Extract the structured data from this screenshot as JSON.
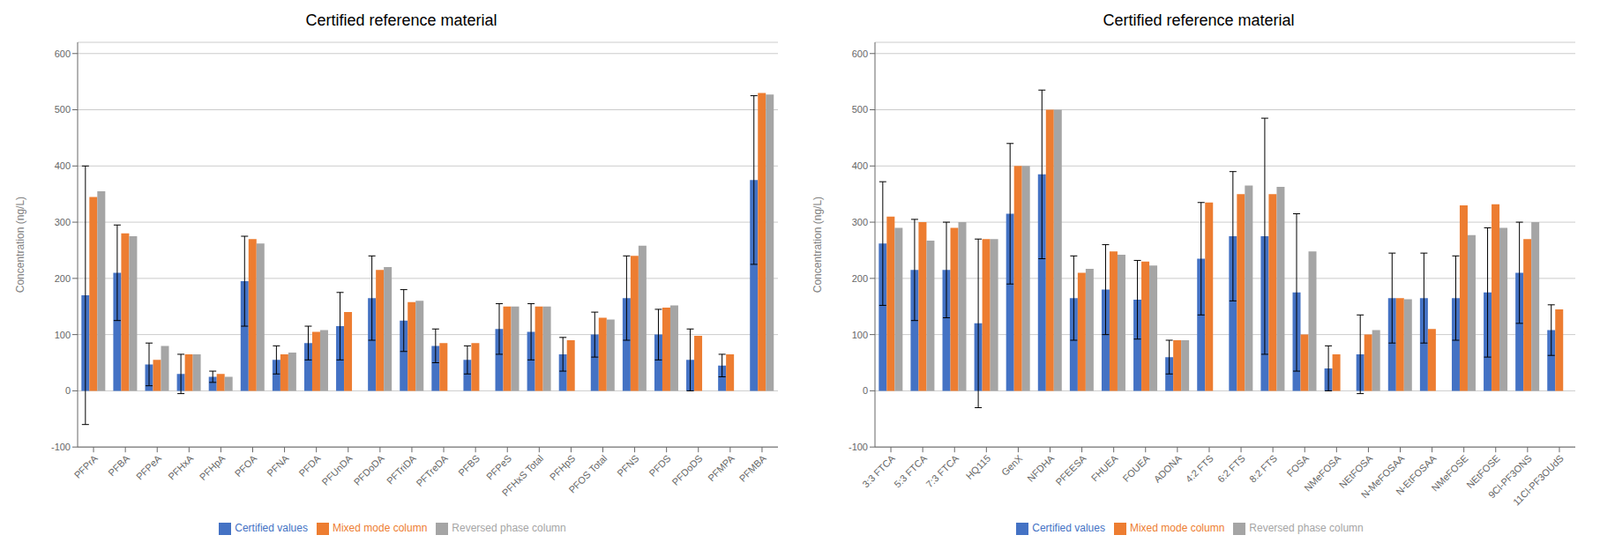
{
  "chart_data": [
    {
      "type": "bar",
      "title": "Certified reference material",
      "ylabel": "Concentration (ng/L)",
      "categories": [
        "PFPrA",
        "PFBA",
        "PFPeA",
        "PFHxA",
        "PFHpA",
        "PFOA",
        "PFNA",
        "PFDA",
        "PFUnDA",
        "PFDoDA",
        "PFTriDA",
        "PFTreDA",
        "PFBS",
        "PFPeS",
        "PFHxS Total",
        "PFHpS",
        "PFOS Total",
        "PFNS",
        "PFDS",
        "PFDoDS",
        "PFMPA",
        "PFMBA"
      ],
      "series": [
        {
          "name": "Certified values",
          "color": "#4472C4",
          "values": [
            170,
            210,
            47,
            30,
            25,
            195,
            55,
            85,
            115,
            165,
            125,
            80,
            55,
            110,
            105,
            65,
            100,
            165,
            100,
            55,
            45,
            375
          ],
          "errors": [
            230,
            85,
            38,
            35,
            10,
            80,
            25,
            30,
            60,
            75,
            55,
            30,
            25,
            45,
            50,
            30,
            40,
            75,
            45,
            55,
            20,
            150
          ]
        },
        {
          "name": "Mixed mode column",
          "color": "#ED7D31",
          "values": [
            345,
            280,
            55,
            65,
            30,
            270,
            65,
            105,
            140,
            215,
            158,
            85,
            85,
            150,
            150,
            90,
            130,
            240,
            148,
            98,
            65,
            530
          ]
        },
        {
          "name": "Reversed phase column",
          "color": "#A5A5A5",
          "values": [
            355,
            275,
            80,
            65,
            25,
            262,
            68,
            108,
            null,
            220,
            160,
            null,
            null,
            150,
            150,
            null,
            127,
            258,
            152,
            null,
            null,
            527
          ]
        }
      ],
      "ylim": [
        -100,
        620
      ],
      "yticks": [
        -100,
        0,
        100,
        200,
        300,
        400,
        500,
        600
      ],
      "grid": true,
      "legend": "bottom"
    },
    {
      "type": "bar",
      "title": "Certified reference material",
      "ylabel": "Concentration (ng/L)",
      "categories": [
        "3:3 FTCA",
        "5:3 FTCA",
        "7:3 FTCA",
        "HQ115",
        "GenX",
        "NFDHA",
        "PFEESA",
        "FHUEA",
        "FOUEA",
        "ADONA",
        "4:2 FTS",
        "6:2 FTS",
        "8:2 FTS",
        "FOSA",
        "NMeFOSA",
        "NEtFOSA",
        "N-MeFOSAA",
        "N-EtFOSAA",
        "NMeFOSE",
        "NEtFOSE",
        "9Cl-PF3ONS",
        "11Cl-PF3OUdS"
      ],
      "series": [
        {
          "name": "Certified values",
          "color": "#4472C4",
          "values": [
            262,
            215,
            215,
            120,
            315,
            385,
            165,
            180,
            162,
            60,
            235,
            275,
            275,
            175,
            40,
            65,
            165,
            165,
            165,
            175,
            210,
            108
          ],
          "errors": [
            110,
            90,
            85,
            150,
            125,
            150,
            75,
            80,
            70,
            30,
            100,
            115,
            210,
            140,
            40,
            70,
            80,
            80,
            75,
            115,
            90,
            45
          ]
        },
        {
          "name": "Mixed mode column",
          "color": "#ED7D31",
          "values": [
            310,
            300,
            290,
            270,
            400,
            500,
            210,
            248,
            230,
            90,
            335,
            350,
            350,
            100,
            65,
            100,
            165,
            110,
            330,
            332,
            270,
            145
          ]
        },
        {
          "name": "Reversed phase column",
          "color": "#A5A5A5",
          "values": [
            290,
            267,
            300,
            270,
            400,
            500,
            217,
            242,
            223,
            90,
            null,
            365,
            363,
            248,
            null,
            108,
            163,
            null,
            277,
            290,
            300,
            null
          ]
        }
      ],
      "ylim": [
        -100,
        620
      ],
      "yticks": [
        -100,
        0,
        100,
        200,
        300,
        400,
        500,
        600
      ],
      "grid": true,
      "legend": "bottom"
    }
  ]
}
